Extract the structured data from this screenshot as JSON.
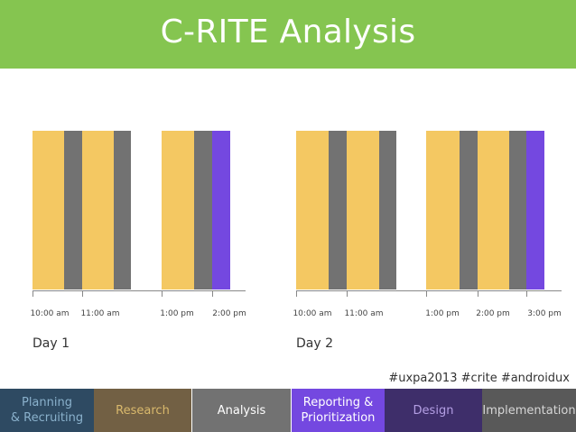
{
  "header": {
    "title": "C-RITE Analysis"
  },
  "timeline": {
    "ticks": [
      "10:00 am",
      "11:00 am",
      "1:00 pm",
      "2:00 pm",
      "10:00 am",
      "11:00 am",
      "1:00 pm",
      "2:00 pm",
      "3:00 pm"
    ],
    "days": [
      "Day 1",
      "Day 2"
    ]
  },
  "hashtags": "#uxpa2013 #crite #androidux",
  "phases": [
    {
      "lines": [
        "Planning",
        "& Recruiting"
      ],
      "color": "#8ab1cc"
    },
    {
      "lines": [
        "Research"
      ],
      "color": "#d9b96c"
    },
    {
      "lines": [
        "Analysis"
      ],
      "color": "#ffffff"
    },
    {
      "lines": [
        "Reporting &",
        "Prioritization"
      ],
      "color": "#ffffff"
    },
    {
      "lines": [
        "Design"
      ],
      "color": "#b49fe4"
    },
    {
      "lines": [
        "Implementation"
      ],
      "color": "#d6d6d6"
    }
  ],
  "colors": {
    "header": "#85c550",
    "test_session": "#f4c862",
    "analysis_gap": "#727272",
    "iteration": "#7448e0"
  }
}
